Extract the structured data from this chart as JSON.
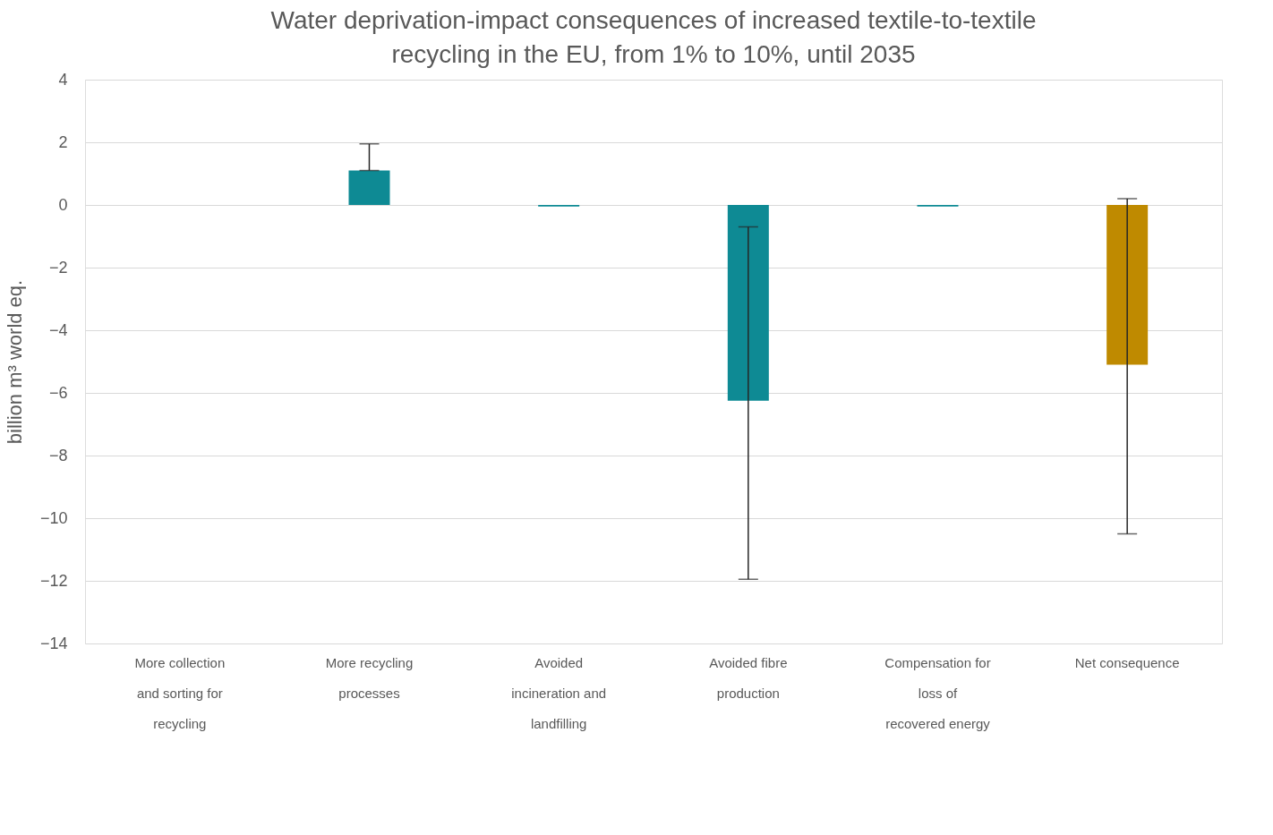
{
  "chart_data": {
    "type": "bar",
    "title": "Water deprivation-impact consequences of increased textile-to-textile recycling in the EU, from 1% to 10%, until 2035",
    "ylabel": "billion m³ world eq.",
    "categories": [
      "More collection and sorting for recycling",
      "More recycling processes",
      "Avoided incineration and landfilling",
      "Avoided fibre production",
      "Compensation for loss of recovered energy",
      "Net consequence"
    ],
    "values": [
      0,
      1.1,
      -0.05,
      -6.25,
      -0.05,
      -5.1
    ],
    "colors": [
      "#0e8a94",
      "#0e8a94",
      "#0e8a94",
      "#0e8a94",
      "#0e8a94",
      "#bf8a00"
    ],
    "errors": [
      null,
      [
        1.1,
        1.95
      ],
      null,
      [
        -11.95,
        -0.7
      ],
      null,
      [
        -10.5,
        0.2
      ]
    ],
    "ylim": [
      -14,
      4
    ],
    "yticks": [
      -14,
      -12,
      -10,
      -8,
      -6,
      -4,
      -2,
      0,
      2,
      4
    ],
    "grid": "y"
  }
}
